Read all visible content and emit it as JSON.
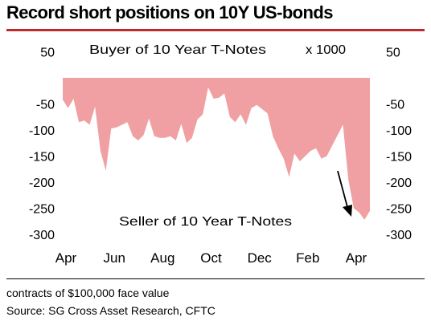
{
  "title": "Record short positions on 10Y US-bonds",
  "colors": {
    "accent": "#c0282d",
    "area_fill": "#f0a0a3",
    "text": "#000000"
  },
  "footer": {
    "units_note": "contracts of $100,000 face value",
    "source": "Source: SG Cross Asset Research, CFTC"
  },
  "chart_data": {
    "type": "area",
    "x_axis": {
      "tick_labels": [
        "Apr",
        "Jun",
        "Aug",
        "Oct",
        "Dec",
        "Feb",
        "Apr"
      ]
    },
    "y_axis": {
      "tick_labels": [
        "50",
        "-50",
        "-100",
        "-150",
        "-200",
        "-250",
        "-300"
      ],
      "tick_values": [
        50,
        -50,
        -100,
        -150,
        -200,
        -250,
        -300
      ],
      "range": [
        -300,
        50
      ],
      "unit_label": "x 1000",
      "shown_on": "left and right"
    },
    "annotations": {
      "top": "Buyer of 10 Year T-Notes",
      "bottom": "Seller of 10 Year T-Notes",
      "arrow": "downward arrow pointing at latest low"
    },
    "grid": false,
    "series": [
      {
        "x": [
          0,
          1,
          2,
          3,
          4,
          5,
          6,
          7,
          8,
          9,
          10,
          11,
          12,
          13,
          14,
          15,
          16,
          17,
          18,
          19,
          20,
          21,
          22,
          23,
          24,
          25,
          26,
          27,
          28,
          29,
          30,
          31,
          32,
          33,
          34,
          35,
          36,
          37,
          38,
          39,
          40,
          41,
          42,
          43,
          44,
          45,
          46,
          47,
          48,
          49,
          50,
          51,
          52,
          53,
          54,
          55,
          56,
          57
        ],
        "values": [
          -42,
          -58,
          -40,
          -85,
          -82,
          -90,
          -55,
          -140,
          -178,
          -97,
          -95,
          -90,
          -85,
          -112,
          -120,
          -110,
          -78,
          -112,
          -115,
          -115,
          -112,
          -120,
          -88,
          -125,
          -115,
          -80,
          -70,
          -18,
          -40,
          -38,
          -30,
          -75,
          -85,
          -70,
          -90,
          -58,
          -52,
          -60,
          -68,
          -112,
          -135,
          -155,
          -190,
          -145,
          -160,
          -150,
          -140,
          -135,
          -155,
          -150,
          -130,
          -110,
          -90,
          -195,
          -250,
          -258,
          -272,
          -255
        ]
      }
    ]
  }
}
